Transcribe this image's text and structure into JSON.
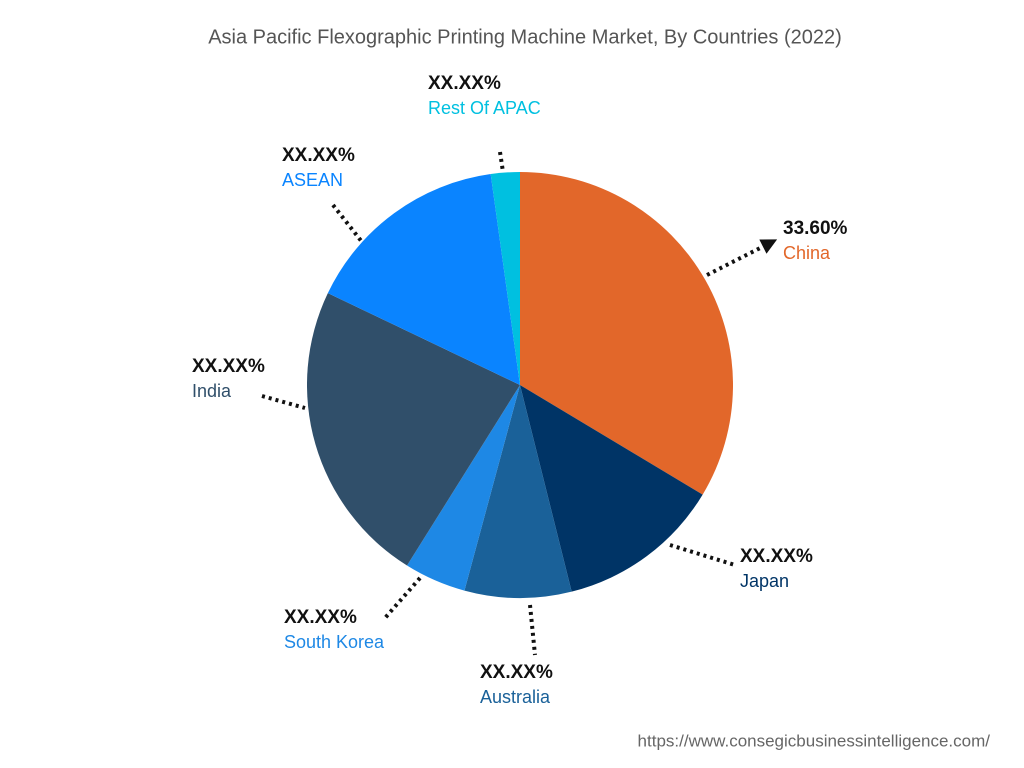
{
  "chart_data": {
    "type": "pie",
    "title": "Asia Pacific Flexographic Printing Machine Market, By Countries (2022)",
    "categories": [
      "China",
      "Japan",
      "Australia",
      "South Korea",
      "India",
      "ASEAN",
      "Rest Of APAC"
    ],
    "values": [
      33.6,
      12.5,
      8.1,
      4.7,
      23.2,
      15.7,
      2.2
    ],
    "value_labels": [
      "33.60%",
      "XX.XX%",
      "XX.XX%",
      "XX.XX%",
      "XX.XX%",
      "XX.XX%",
      "XX.XX%"
    ],
    "colors": [
      "#e2672a",
      "#003466",
      "#1a6199",
      "#1e88e5",
      "#304f6a",
      "#0a84ff",
      "#00c0e0"
    ],
    "source": "https://www.consegicbusinessintelligence.com/"
  }
}
